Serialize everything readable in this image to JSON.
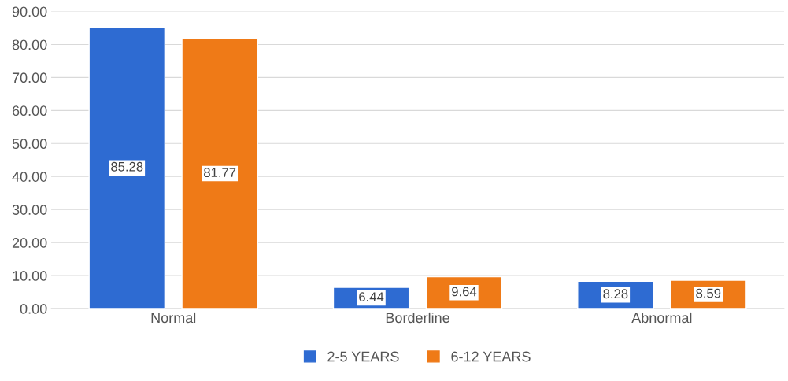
{
  "chart_data": {
    "type": "bar",
    "categories": [
      "Normal",
      "Borderline",
      "Abnormal"
    ],
    "series": [
      {
        "name": "2-5 YEARS",
        "color": "#2e6bd2",
        "values": [
          85.28,
          6.44,
          8.28
        ]
      },
      {
        "name": "6-12 YEARS",
        "color": "#ef7a17",
        "values": [
          81.77,
          9.64,
          8.59
        ]
      }
    ],
    "ylim": [
      0,
      90
    ],
    "yticks": [
      {
        "value": 0,
        "label": "0.00"
      },
      {
        "value": 10,
        "label": "10.00"
      },
      {
        "value": 20,
        "label": "20.00"
      },
      {
        "value": 30,
        "label": "30.00"
      },
      {
        "value": 40,
        "label": "40.00"
      },
      {
        "value": 50,
        "label": "50.00"
      },
      {
        "value": 60,
        "label": "60.00"
      },
      {
        "value": 70,
        "label": "70.00"
      },
      {
        "value": 80,
        "label": "80.00"
      },
      {
        "value": 90,
        "label": "90.00"
      }
    ],
    "grid": "y",
    "legend": "bottom",
    "data_labels": true
  }
}
